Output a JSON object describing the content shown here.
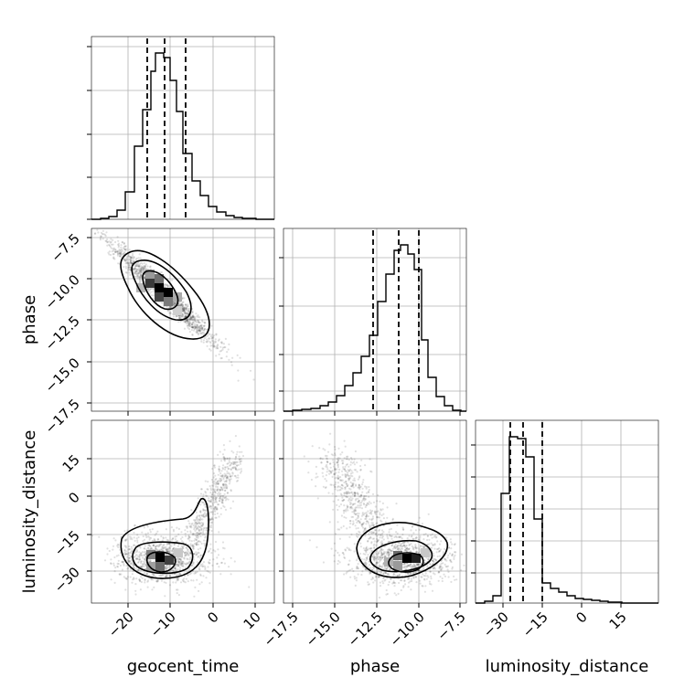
{
  "chart_data": {
    "type": "corner",
    "parameters": [
      "geocent_time",
      "phase",
      "luminosity_distance"
    ],
    "axis_ticks": {
      "geocent_time": [
        "−20",
        "−10",
        "0",
        "10"
      ],
      "phase": [
        "−17.5",
        "−15.0",
        "−12.5",
        "−10.0",
        "−7.5"
      ],
      "luminosity_distance": [
        "−30",
        "−15",
        "0",
        "15"
      ]
    },
    "axis_ranges": {
      "geocent_time": [
        -29,
        15
      ],
      "phase": [
        -18.3,
        -7.2
      ],
      "luminosity_distance": [
        -42,
        28
      ]
    },
    "quantiles": {
      "geocent_time": [
        -16,
        -11.5,
        -6.5
      ],
      "phase": [
        -12.6,
        -11.0,
        -9.8
      ],
      "luminosity_distance": [
        -29,
        -24,
        -16
      ]
    },
    "histograms": {
      "geocent_time": {
        "bins": [
          -27,
          -25,
          -23,
          -21,
          -19,
          -17,
          -15,
          -13,
          -11,
          -9,
          -7,
          -5,
          -3,
          -1,
          1,
          3,
          5,
          7,
          9,
          11,
          13
        ],
        "counts": [
          0.5,
          1.5,
          4,
          12,
          28,
          55,
          78,
          92,
          90,
          75,
          50,
          30,
          18,
          10,
          6,
          3,
          1.5,
          0.8,
          0.3,
          0.1
        ]
      },
      "phase": {
        "bins": [
          -18.0,
          -17.5,
          -17.0,
          -16.5,
          -16.0,
          -15.5,
          -15.0,
          -14.5,
          -14.0,
          -13.5,
          -13.0,
          -12.5,
          -12.0,
          -11.5,
          -11.0,
          -10.5,
          -10.0,
          -9.5,
          -9.0,
          -8.5,
          -8.0,
          -7.5
        ],
        "counts": [
          0.2,
          1,
          1.5,
          3,
          5,
          7,
          10,
          15,
          22,
          32,
          45,
          68,
          85,
          90,
          88,
          70,
          35,
          12,
          5,
          1,
          0.2
        ]
      },
      "luminosity_distance": {
        "bins": [
          -39,
          -36,
          -33,
          -30,
          -27,
          -24,
          -21,
          -18,
          -15,
          -12,
          -9,
          -6,
          -3,
          0,
          3,
          6,
          9,
          12
        ],
        "counts": [
          2,
          10,
          70,
          105,
          104,
          94,
          48,
          14,
          10,
          7,
          5,
          3,
          2,
          1.2,
          0.8,
          0.4,
          0.2
        ]
      }
    },
    "scatter_2d": [
      {
        "x": "geocent_time",
        "y": "phase",
        "peak": [
          -11,
          -10.8
        ],
        "correlation": "negative"
      },
      {
        "x": "geocent_time",
        "y": "luminosity_distance",
        "peak": [
          -12,
          -26
        ],
        "correlation": "curved"
      },
      {
        "x": "phase",
        "y": "luminosity_distance",
        "peak": [
          -10.3,
          -25
        ],
        "correlation": "curved"
      }
    ]
  }
}
